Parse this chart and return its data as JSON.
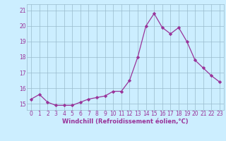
{
  "x": [
    0,
    1,
    2,
    3,
    4,
    5,
    6,
    7,
    8,
    9,
    10,
    11,
    12,
    13,
    14,
    15,
    16,
    17,
    18,
    19,
    20,
    21,
    22,
    23
  ],
  "y": [
    15.3,
    15.6,
    15.1,
    14.9,
    14.9,
    14.9,
    15.1,
    15.3,
    15.4,
    15.5,
    15.8,
    15.8,
    16.5,
    18.0,
    20.0,
    20.8,
    19.9,
    19.5,
    19.9,
    19.0,
    17.8,
    17.3,
    16.8,
    16.4
  ],
  "line_color": "#993399",
  "marker_color": "#993399",
  "bg_color": "#cceeff",
  "grid_color": "#99bbcc",
  "xlabel": "Windchill (Refroidissement éolien,°C)",
  "xlabel_color": "#993399",
  "ylim_min": 14.6,
  "ylim_max": 21.4,
  "yticks": [
    15,
    16,
    17,
    18,
    19,
    20,
    21
  ],
  "xticks": [
    0,
    1,
    2,
    3,
    4,
    5,
    6,
    7,
    8,
    9,
    10,
    11,
    12,
    13,
    14,
    15,
    16,
    17,
    18,
    19,
    20,
    21,
    22,
    23
  ],
  "tick_label_size": 5.5,
  "xlabel_size": 6.0
}
